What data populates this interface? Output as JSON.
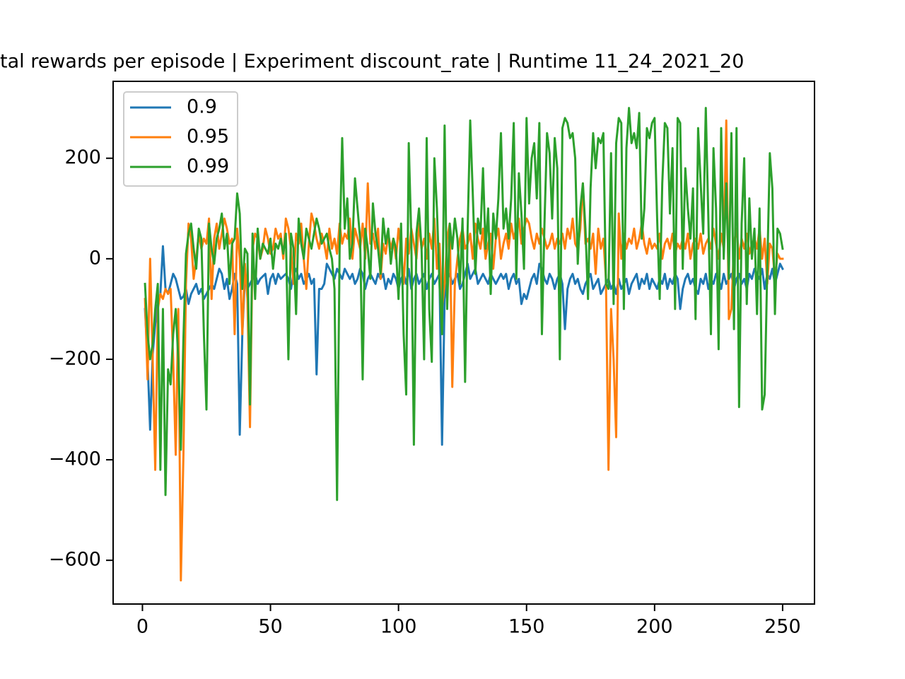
{
  "chart_data": {
    "type": "line",
    "title": "tal rewards per episode | Experiment discount_rate | Runtime 11_24_2021_20",
    "x": [
      1,
      2,
      3,
      4,
      5,
      6,
      7,
      8,
      9,
      10,
      11,
      12,
      13,
      14,
      15,
      16,
      17,
      18,
      19,
      20,
      21,
      22,
      23,
      24,
      25,
      26,
      27,
      28,
      29,
      30,
      31,
      32,
      33,
      34,
      35,
      36,
      37,
      38,
      39,
      40,
      41,
      42,
      43,
      44,
      45,
      46,
      47,
      48,
      49,
      50,
      51,
      52,
      53,
      54,
      55,
      56,
      57,
      58,
      59,
      60,
      61,
      62,
      63,
      64,
      65,
      66,
      67,
      68,
      69,
      70,
      71,
      72,
      73,
      74,
      75,
      76,
      77,
      78,
      79,
      80,
      81,
      82,
      83,
      84,
      85,
      86,
      87,
      88,
      89,
      90,
      91,
      92,
      93,
      94,
      95,
      96,
      97,
      98,
      99,
      100,
      101,
      102,
      103,
      104,
      105,
      106,
      107,
      108,
      109,
      110,
      111,
      112,
      113,
      114,
      115,
      116,
      117,
      118,
      119,
      120,
      121,
      122,
      123,
      124,
      125,
      126,
      127,
      128,
      129,
      130,
      131,
      132,
      133,
      134,
      135,
      136,
      137,
      138,
      139,
      140,
      141,
      142,
      143,
      144,
      145,
      146,
      147,
      148,
      149,
      150,
      151,
      152,
      153,
      154,
      155,
      156,
      157,
      158,
      159,
      160,
      161,
      162,
      163,
      164,
      165,
      166,
      167,
      168,
      169,
      170,
      171,
      172,
      173,
      174,
      175,
      176,
      177,
      178,
      179,
      180,
      181,
      182,
      183,
      184,
      185,
      186,
      187,
      188,
      189,
      190,
      191,
      192,
      193,
      194,
      195,
      196,
      197,
      198,
      199,
      200,
      201,
      202,
      203,
      204,
      205,
      206,
      207,
      208,
      209,
      210,
      211,
      212,
      213,
      214,
      215,
      216,
      217,
      218,
      219,
      220,
      221,
      222,
      223,
      224,
      225,
      226,
      227,
      228,
      229,
      230,
      231,
      232,
      233,
      234,
      235,
      236,
      237,
      238,
      239,
      240,
      241,
      242,
      243,
      244,
      245,
      246,
      247,
      248,
      249,
      250
    ],
    "series": [
      {
        "name": "0.9",
        "color": "#1f77b4",
        "values": [
          -100,
          -200,
          -340,
          -190,
          -130,
          -90,
          -70,
          25,
          -60,
          -70,
          -50,
          -30,
          -40,
          -60,
          -80,
          -75,
          -60,
          -90,
          -70,
          -60,
          -50,
          -70,
          -60,
          -80,
          -70,
          -60,
          -50,
          -60,
          -40,
          -20,
          -30,
          -60,
          -40,
          -80,
          -60,
          -30,
          -50,
          -350,
          -150,
          -40,
          -60,
          -50,
          -40,
          -30,
          -50,
          -40,
          -35,
          -30,
          -70,
          -40,
          -30,
          -50,
          -30,
          -40,
          -35,
          -30,
          -40,
          -60,
          -30,
          -20,
          -40,
          -30,
          -50,
          -40,
          -30,
          -50,
          -40,
          -230,
          -60,
          -60,
          -50,
          -10,
          -20,
          -30,
          -40,
          -20,
          -30,
          -40,
          -20,
          -30,
          -40,
          -30,
          -50,
          -40,
          -20,
          -30,
          -60,
          -40,
          -30,
          -40,
          -50,
          -30,
          -40,
          -30,
          -60,
          -40,
          -50,
          -30,
          -40,
          -60,
          -40,
          -30,
          -50,
          -20,
          -60,
          -40,
          -30,
          -50,
          -40,
          -30,
          -60,
          -40,
          -30,
          -50,
          -40,
          -30,
          -370,
          -80,
          -40,
          -30,
          -50,
          -40,
          -30,
          -60,
          -50,
          -30,
          -10,
          -40,
          -30,
          -20,
          -50,
          -40,
          -30,
          -40,
          -50,
          -30,
          -40,
          -50,
          -40,
          -30,
          -40,
          -30,
          -60,
          -40,
          -30,
          -50,
          -40,
          -90,
          -70,
          -80,
          -60,
          -40,
          -30,
          -50,
          -10,
          -20,
          -40,
          -50,
          -30,
          -40,
          -60,
          -40,
          -30,
          -50,
          -140,
          -60,
          -40,
          -30,
          -50,
          -40,
          -60,
          -70,
          -50,
          -40,
          -30,
          -60,
          -50,
          -40,
          -70,
          -60,
          -50,
          -40,
          -60,
          -50,
          -70,
          -40,
          -60,
          -50,
          -40,
          -70,
          -50,
          -40,
          -30,
          -60,
          -40,
          -50,
          -30,
          -60,
          -40,
          -50,
          -60,
          -40,
          -50,
          -30,
          -60,
          -40,
          -50,
          -30,
          -40,
          -100,
          -60,
          -40,
          -30,
          -50,
          -40,
          -60,
          -70,
          -40,
          -50,
          -30,
          -60,
          -40,
          -50,
          -30,
          -40,
          -60,
          -30,
          -50,
          -40,
          -30,
          -60,
          -40,
          -30,
          -50,
          -40,
          -60,
          -30,
          -40,
          -20,
          -30,
          -40,
          -20,
          -60,
          -30,
          -40,
          -20,
          -50,
          -30,
          -10,
          -20
        ]
      },
      {
        "name": "0.95",
        "color": "#ff7f0e",
        "values": [
          -80,
          -240,
          0,
          -200,
          -420,
          -100,
          -70,
          -80,
          -60,
          -70,
          -60,
          -200,
          -390,
          -100,
          -640,
          -390,
          -50,
          70,
          40,
          -40,
          0,
          50,
          20,
          40,
          30,
          80,
          -80,
          40,
          70,
          20,
          50,
          80,
          60,
          30,
          40,
          -150,
          60,
          0,
          -150,
          -10,
          -80,
          -335,
          20,
          50,
          40,
          0,
          20,
          60,
          40,
          10,
          20,
          60,
          40,
          50,
          0,
          80,
          60,
          20,
          -50,
          50,
          30,
          70,
          0,
          -60,
          30,
          90,
          70,
          40,
          20,
          50,
          30,
          0,
          60,
          20,
          40,
          10,
          70,
          30,
          50,
          40,
          80,
          0,
          60,
          40,
          20,
          70,
          0,
          150,
          30,
          50,
          20,
          60,
          -40,
          30,
          10,
          50,
          20,
          40,
          0,
          60,
          20,
          -50,
          40,
          10,
          60,
          30,
          0,
          70,
          20,
          40,
          0,
          50,
          20,
          80,
          -20,
          30,
          -100,
          -50,
          40,
          70,
          -255,
          -50,
          0,
          40,
          60,
          20,
          30,
          50,
          0,
          70,
          40,
          20,
          60,
          0,
          30,
          50,
          -20,
          40,
          60,
          0,
          30,
          50,
          20,
          70,
          40,
          60,
          80,
          30,
          60,
          80,
          70,
          40,
          20,
          50,
          30,
          60,
          40,
          20,
          30,
          50,
          20,
          40,
          30,
          50,
          20,
          60,
          40,
          80,
          30,
          20,
          60,
          150,
          30,
          40,
          20,
          50,
          -30,
          60,
          20,
          40,
          -40,
          -420,
          -100,
          -200,
          -355,
          90,
          0,
          50,
          20,
          40,
          30,
          60,
          20,
          40,
          70,
          30,
          10,
          40,
          20,
          30,
          20,
          50,
          0,
          30,
          40,
          20,
          50,
          10,
          30,
          20,
          40,
          20,
          50,
          0,
          30,
          40,
          20,
          50,
          10,
          30,
          40,
          20,
          60,
          30,
          0,
          50,
          20,
          275,
          -120,
          -100,
          30,
          60,
          0,
          40,
          20,
          50,
          10,
          30,
          40,
          20,
          60,
          0,
          40,
          -50,
          30,
          20,
          -40,
          10,
          0,
          0
        ]
      },
      {
        "name": "0.99",
        "color": "#2ca02c",
        "values": [
          -50,
          -150,
          -200,
          -170,
          -100,
          -50,
          -420,
          -100,
          -470,
          -220,
          -250,
          -150,
          -100,
          -200,
          -380,
          -160,
          10,
          50,
          70,
          20,
          -20,
          60,
          40,
          -150,
          -300,
          70,
          20,
          -10,
          40,
          60,
          90,
          20,
          50,
          -50,
          30,
          40,
          130,
          90,
          -60,
          20,
          10,
          -290,
          50,
          -80,
          60,
          0,
          30,
          20,
          10,
          40,
          -20,
          30,
          20,
          40,
          10,
          50,
          -200,
          50,
          20,
          -110,
          80,
          30,
          0,
          60,
          40,
          20,
          50,
          80,
          60,
          30,
          40,
          50,
          20,
          0,
          -60,
          -480,
          20,
          240,
          60,
          120,
          0,
          30,
          160,
          100,
          40,
          -240,
          60,
          20,
          -40,
          110,
          50,
          20,
          -30,
          80,
          30,
          60,
          -10,
          40,
          20,
          -80,
          70,
          -150,
          -270,
          230,
          40,
          -370,
          50,
          100,
          20,
          -200,
          240,
          -100,
          -205,
          200,
          100,
          -50,
          -150,
          265,
          -100,
          70,
          20,
          80,
          40,
          -50,
          80,
          -245,
          60,
          275,
          130,
          -30,
          80,
          50,
          180,
          20,
          100,
          -70,
          90,
          40,
          120,
          250,
          60,
          100,
          40,
          120,
          270,
          -40,
          170,
          90,
          -20,
          280,
          110,
          200,
          230,
          120,
          270,
          -150,
          70,
          250,
          210,
          80,
          240,
          180,
          -200,
          260,
          280,
          270,
          240,
          250,
          200,
          -10,
          100,
          150,
          60,
          -80,
          140,
          250,
          180,
          240,
          230,
          250,
          -50,
          -60,
          210,
          -90,
          230,
          280,
          270,
          -100,
          220,
          300,
          230,
          250,
          220,
          290,
          40,
          100,
          260,
          240,
          270,
          280,
          80,
          -80,
          150,
          270,
          260,
          90,
          220,
          -100,
          280,
          270,
          -20,
          180,
          100,
          40,
          140,
          -120,
          260,
          150,
          50,
          300,
          80,
          -150,
          220,
          100,
          -180,
          260,
          0,
          150,
          -40,
          250,
          -140,
          260,
          -295,
          70,
          200,
          -90,
          120,
          0,
          60,
          -110,
          100,
          -300,
          -270,
          -20,
          210,
          140,
          -110,
          60,
          50,
          20
        ]
      }
    ],
    "xlim": [
      -11.45,
      262.45
    ],
    "ylim": [
      -687,
      353
    ],
    "xticks": [
      0,
      50,
      100,
      150,
      200,
      250
    ],
    "yticks": [
      {
        "value": -600,
        "label": "−600"
      },
      {
        "value": -400,
        "label": "−400"
      },
      {
        "value": -200,
        "label": "−200"
      },
      0,
      200
    ],
    "legend": "upper left"
  }
}
